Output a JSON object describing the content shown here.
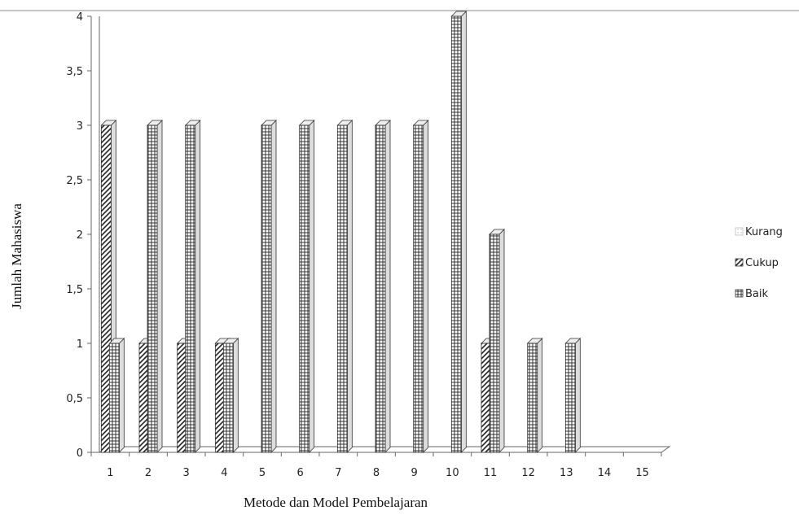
{
  "chart_data": {
    "type": "bar",
    "title": "",
    "xlabel": "Metode dan Model Pembelajaran",
    "ylabel": "Jumlah Mahasiswa",
    "categories": [
      "1",
      "2",
      "3",
      "4",
      "5",
      "6",
      "7",
      "8",
      "9",
      "10",
      "11",
      "12",
      "13",
      "14",
      "15"
    ],
    "series": [
      {
        "name": "Kurang",
        "values": [
          0,
          0,
          0,
          0,
          0,
          0,
          0,
          0,
          0,
          0,
          0,
          0,
          0,
          0,
          0
        ]
      },
      {
        "name": "Cukup",
        "values": [
          3,
          1,
          1,
          1,
          0,
          0,
          0,
          0,
          0,
          0,
          1,
          0,
          0,
          0,
          0
        ]
      },
      {
        "name": "Baik",
        "values": [
          1,
          3,
          3,
          1,
          3,
          3,
          3,
          3,
          3,
          4,
          2,
          1,
          1,
          0,
          0
        ]
      }
    ],
    "yticks": [
      "0",
      "0,5",
      "1",
      "1,5",
      "2",
      "2,5",
      "3",
      "3,5",
      "4"
    ],
    "ylim": [
      0,
      4
    ],
    "grid": false,
    "legend": "right"
  }
}
